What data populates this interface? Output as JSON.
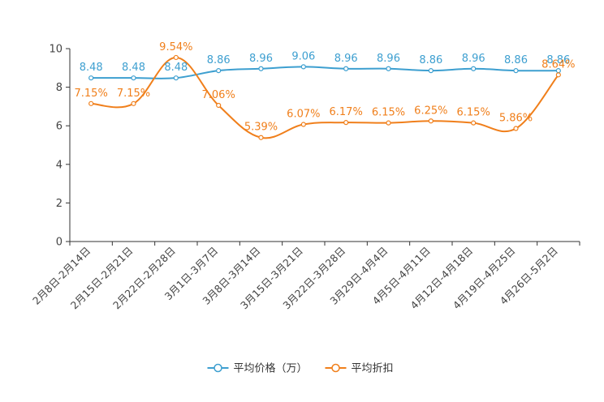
{
  "chart_data": {
    "type": "line",
    "categories": [
      "2月8日-2月14日",
      "2月15日-2月21日",
      "2月22日-2月28日",
      "3月1日-3月7日",
      "3月8日-3月14日",
      "3月15日-3月21日",
      "3月22日-3月28日",
      "3月29日-4月4日",
      "4月5日-4月11日",
      "4月12日-4月18日",
      "4月19日-4月25日",
      "4月26日-5月2日"
    ],
    "ylim": [
      0,
      10
    ],
    "yticks": [
      "0",
      "2",
      "4",
      "6",
      "8",
      "10"
    ],
    "grid": false,
    "series": [
      {
        "name": "平均价格（万）",
        "color": "#3d9fd0",
        "values": [
          8.48,
          8.48,
          8.48,
          8.86,
          8.96,
          9.06,
          8.96,
          8.96,
          8.86,
          8.96,
          8.86,
          8.86
        ],
        "labels": [
          "8.48",
          "8.48",
          "8.48",
          "8.86",
          "8.96",
          "9.06",
          "8.96",
          "8.96",
          "8.86",
          "8.96",
          "8.86",
          "8.86"
        ]
      },
      {
        "name": "平均折扣",
        "color": "#f07f1b",
        "values": [
          7.15,
          7.15,
          9.54,
          7.06,
          5.39,
          6.07,
          6.17,
          6.15,
          6.25,
          6.15,
          5.86,
          8.64
        ],
        "labels": [
          "7.15%",
          "7.15%",
          "9.54%",
          "7.06%",
          "5.39%",
          "6.07%",
          "6.17%",
          "6.15%",
          "6.25%",
          "6.15%",
          "5.86%",
          "8.64%"
        ]
      }
    ],
    "legend": {
      "position": "bottom-center",
      "items": [
        "平均价格（万）",
        "平均折扣"
      ]
    }
  }
}
